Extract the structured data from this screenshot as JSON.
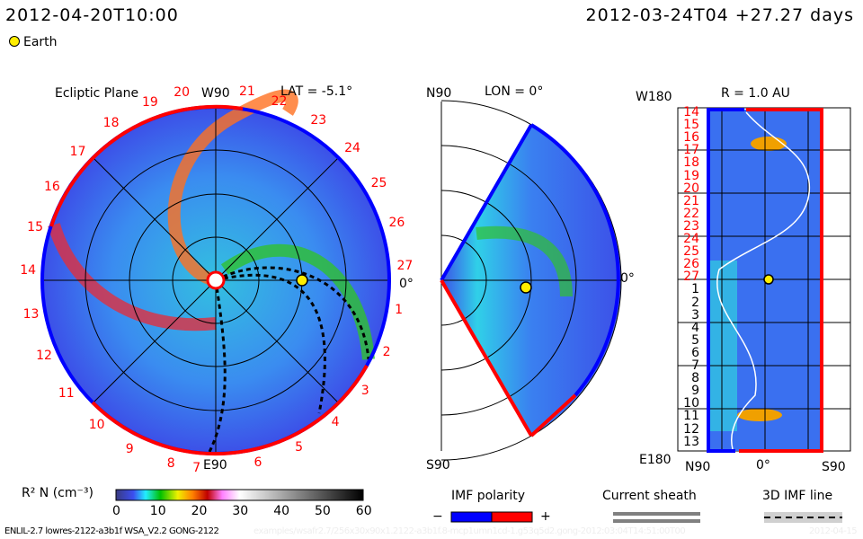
{
  "header": {
    "date": "2012-04-20T10:00",
    "run_date": "2012-03-24T04 +27.27 days",
    "earth_label": "Earth"
  },
  "colors": {
    "positive": "#ff0000",
    "negative": "#0000ff",
    "earth": "#ffee00"
  },
  "chart_data": [
    {
      "type": "heatmap",
      "title": "Ecliptic Plane",
      "subtitle": "LAT = -5.1°",
      "top_label": "W90",
      "bottom_label": "E90",
      "right_label": "0°",
      "rim_labels": [
        "27",
        "26",
        "25",
        "24",
        "23",
        "22",
        "21",
        "20",
        "19",
        "18",
        "17",
        "16",
        "15",
        "14",
        "13",
        "12",
        "11",
        "10",
        "9",
        "8",
        "7",
        "6",
        "5",
        "4",
        "3",
        "2",
        "1"
      ]
    },
    {
      "type": "heatmap",
      "title": "LON = 0°",
      "top_label": "N90",
      "bottom_label": "S90",
      "right_label": "0°"
    },
    {
      "type": "heatmap",
      "title": "R = 1.0 AU",
      "top_label": "W180",
      "bottom_label": "E180",
      "xticks": [
        "N90",
        "0°",
        "S90"
      ],
      "yticks": [
        "14",
        "15",
        "16",
        "17",
        "18",
        "19",
        "20",
        "21",
        "22",
        "23",
        "24",
        "25",
        "26",
        "27",
        "1",
        "2",
        "3",
        "4",
        "5",
        "6",
        "7",
        "8",
        "9",
        "10",
        "11",
        "12",
        "13"
      ]
    },
    {
      "type": "colorbar",
      "label": "R² N (cm⁻³)",
      "range": [
        0,
        60
      ],
      "ticks": [
        "0",
        "10",
        "20",
        "30",
        "40",
        "50",
        "60"
      ]
    }
  ],
  "legend": {
    "imf_polarity": "IMF polarity",
    "minus": "−",
    "plus": "+",
    "current_sheath": "Current sheath",
    "imf_line": "3D IMF line"
  },
  "footer": {
    "model": "ENLIL-2.7 lowres-2122-a3b1f WSA_V2.2 GONG-2122",
    "path": "examples/wsafr2.7/256x30x90x1.2122-a3b1f.8-mcp1umn1cd-1.g53q5d2.gong-2012:03:04T14:51:00T00",
    "date": "2012-04-15"
  }
}
